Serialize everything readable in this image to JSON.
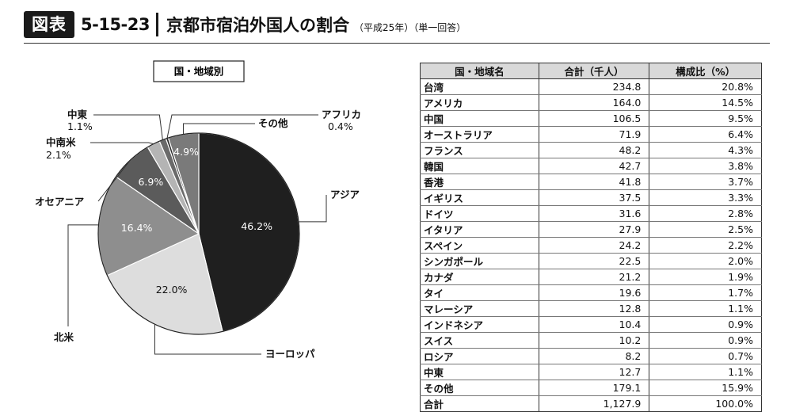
{
  "header": {
    "badge": "図表",
    "figure_number": "5-15-23",
    "title": "京都市宿泊外国人の割合",
    "subtitle": "（平成25年）（単一回答）"
  },
  "chart_data": [
    {
      "type": "pie",
      "title": "国・地域別",
      "slices": [
        {
          "label": "アジア",
          "value": 46.2,
          "value_label": "46.2%",
          "color": "#1f1f1f",
          "text_color": "#ffffff",
          "label_side": "right"
        },
        {
          "label": "ヨーロッパ",
          "value": 22.0,
          "value_label": "22.0%",
          "color": "#dddddd",
          "text_color": "#111111",
          "label_side": "right"
        },
        {
          "label": "北米",
          "value": 16.4,
          "value_label": "16.4%",
          "color": "#8e8e8e",
          "text_color": "#ffffff",
          "label_side": "left"
        },
        {
          "label": "オセアニア",
          "value": 6.9,
          "value_label": "6.9%",
          "color": "#5b5b5b",
          "text_color": "#ffffff",
          "label_side": "left"
        },
        {
          "label": "中南米",
          "value": 2.1,
          "value_label": "2.1%",
          "color": "#b4b4b4",
          "text_color": "#111111",
          "label_side": "left",
          "outside": true
        },
        {
          "label": "中東",
          "value": 1.1,
          "value_label": "1.1%",
          "color": "#6a6a6a",
          "text_color": "#111111",
          "label_side": "left",
          "outside": true
        },
        {
          "label": "アフリカ",
          "value": 0.4,
          "value_label": "0.4%",
          "color": "#2e2e2e",
          "text_color": "#111111",
          "label_side": "right",
          "outside": true
        },
        {
          "label": "その他",
          "value": 4.9,
          "value_label": "4.9%",
          "color": "#7a7a7a",
          "text_color": "#ffffff",
          "label_side": "right"
        }
      ]
    },
    {
      "type": "table",
      "columns": [
        "国・地域名",
        "合計（千人）",
        "構成比（%）"
      ],
      "rows": [
        [
          "台湾",
          "234.8",
          "20.8%"
        ],
        [
          "アメリカ",
          "164.0",
          "14.5%"
        ],
        [
          "中国",
          "106.5",
          "9.5%"
        ],
        [
          "オーストラリア",
          "71.9",
          "6.4%"
        ],
        [
          "フランス",
          "48.2",
          "4.3%"
        ],
        [
          "韓国",
          "42.7",
          "3.8%"
        ],
        [
          "香港",
          "41.8",
          "3.7%"
        ],
        [
          "イギリス",
          "37.5",
          "3.3%"
        ],
        [
          "ドイツ",
          "31.6",
          "2.8%"
        ],
        [
          "イタリア",
          "27.9",
          "2.5%"
        ],
        [
          "スペイン",
          "24.2",
          "2.2%"
        ],
        [
          "シンガポール",
          "22.5",
          "2.0%"
        ],
        [
          "カナダ",
          "21.2",
          "1.9%"
        ],
        [
          "タイ",
          "19.6",
          "1.7%"
        ],
        [
          "マレーシア",
          "12.8",
          "1.1%"
        ],
        [
          "インドネシア",
          "10.4",
          "0.9%"
        ],
        [
          "スイス",
          "10.2",
          "0.9%"
        ],
        [
          "ロシア",
          "8.2",
          "0.7%"
        ],
        [
          "中東",
          "12.7",
          "1.1%"
        ],
        [
          "その他",
          "179.1",
          "15.9%"
        ],
        [
          "合計",
          "1,127.9",
          "100.0%"
        ]
      ]
    }
  ]
}
